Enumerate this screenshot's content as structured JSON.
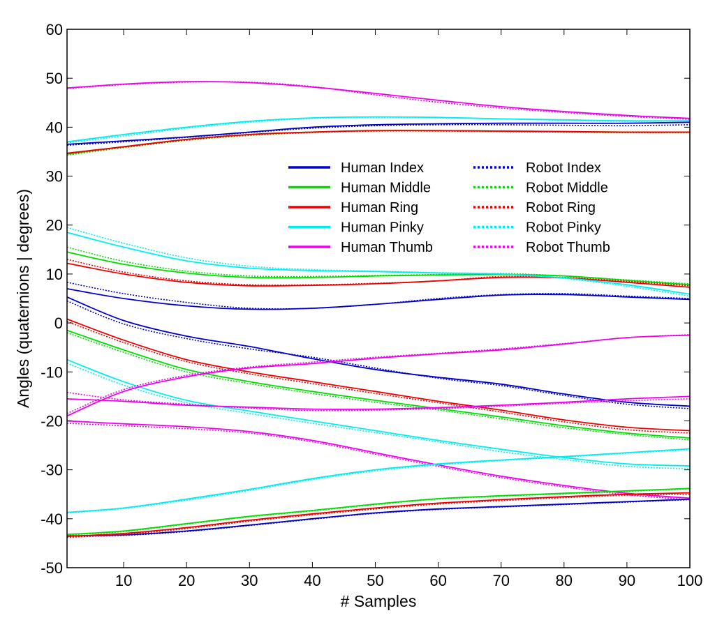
{
  "chart_data": {
    "type": "line",
    "title": "",
    "xlabel": "# Samples",
    "ylabel": "Angles (quaternions | degrees)",
    "xlim": [
      1,
      100
    ],
    "ylim": [
      -50,
      60
    ],
    "xticks": [
      "10",
      "20",
      "30",
      "40",
      "50",
      "60",
      "70",
      "80",
      "90",
      "100"
    ],
    "yticks": [
      "-50",
      "-40",
      "-30",
      "-20",
      "-10",
      "0",
      "10",
      "20",
      "30",
      "40",
      "50",
      "60"
    ],
    "grid": false,
    "legend_position": "upper-center",
    "legend": [
      {
        "name": "Human Index",
        "color": "#0000c8",
        "style": "solid"
      },
      {
        "name": "Human Middle",
        "color": "#00dd00",
        "style": "solid"
      },
      {
        "name": "Human Ring",
        "color": "#ee0000",
        "style": "solid"
      },
      {
        "name": "Human Pinky",
        "color": "#00eeee",
        "style": "solid"
      },
      {
        "name": "Human Thumb",
        "color": "#ee00ee",
        "style": "solid"
      },
      {
        "name": "Robot Index",
        "color": "#0000c8",
        "style": "dotted"
      },
      {
        "name": "Robot Middle",
        "color": "#00dd00",
        "style": "dotted"
      },
      {
        "name": "Robot Ring",
        "color": "#ee0000",
        "style": "dotted"
      },
      {
        "name": "Robot Pinky",
        "color": "#00eeee",
        "style": "dotted"
      },
      {
        "name": "Robot Thumb",
        "color": "#ee00ee",
        "style": "dotted"
      }
    ],
    "x": [
      1,
      10,
      20,
      30,
      40,
      50,
      60,
      70,
      80,
      90,
      100
    ],
    "series": [
      {
        "finger": "index",
        "style": "solid",
        "color": "#0000c8",
        "values": [
          36.5,
          37.2,
          38.0,
          39.0,
          40.0,
          40.5,
          40.7,
          40.8,
          40.8,
          40.8,
          41.0
        ]
      },
      {
        "finger": "index",
        "style": "dotted",
        "color": "#0000c8",
        "values": [
          36.3,
          37.0,
          37.9,
          38.9,
          39.8,
          40.3,
          40.5,
          40.5,
          40.4,
          40.3,
          40.5
        ]
      },
      {
        "finger": "middle",
        "style": "solid",
        "color": "#00dd00",
        "values": [
          34.5,
          36.0,
          37.5,
          38.5,
          39.0,
          39.3,
          39.3,
          39.2,
          39.1,
          39.0,
          39.0
        ]
      },
      {
        "finger": "middle",
        "style": "dotted",
        "color": "#00dd00",
        "values": [
          34.3,
          35.8,
          37.3,
          38.3,
          38.9,
          39.3,
          39.3,
          39.1,
          39.0,
          38.9,
          38.9
        ]
      },
      {
        "finger": "ring",
        "style": "solid",
        "color": "#ee0000",
        "values": [
          34.7,
          36.0,
          37.5,
          38.5,
          39.0,
          39.3,
          39.3,
          39.2,
          39.1,
          39.0,
          39.0
        ]
      },
      {
        "finger": "ring",
        "style": "dotted",
        "color": "#ee0000",
        "values": [
          34.6,
          35.9,
          37.4,
          38.4,
          38.9,
          39.2,
          39.2,
          39.1,
          39.0,
          38.9,
          38.9
        ]
      },
      {
        "finger": "pinky",
        "style": "solid",
        "color": "#00eeee",
        "values": [
          37.0,
          38.5,
          40.0,
          41.2,
          41.9,
          42.1,
          42.0,
          41.7,
          41.5,
          41.3,
          41.3
        ]
      },
      {
        "finger": "pinky",
        "style": "dotted",
        "color": "#00eeee",
        "values": [
          36.8,
          38.2,
          39.8,
          41.0,
          41.8,
          42.0,
          41.9,
          41.7,
          41.4,
          41.2,
          41.3
        ]
      },
      {
        "finger": "thumb",
        "style": "solid",
        "color": "#ee00ee",
        "values": [
          48.0,
          48.8,
          49.3,
          49.1,
          48.2,
          46.9,
          45.5,
          44.2,
          43.2,
          42.4,
          41.8
        ]
      },
      {
        "finger": "thumb",
        "style": "dotted",
        "color": "#ee00ee",
        "values": [
          47.9,
          48.7,
          49.2,
          49.2,
          48.3,
          46.6,
          45.1,
          43.9,
          43.0,
          42.2,
          41.6
        ]
      },
      {
        "finger": "index",
        "style": "solid",
        "color": "#0000c8",
        "values": [
          7.0,
          5.0,
          3.5,
          2.8,
          3.0,
          3.8,
          4.8,
          5.7,
          5.8,
          5.3,
          4.8
        ]
      },
      {
        "finger": "index",
        "style": "dotted",
        "color": "#0000c8",
        "values": [
          8.3,
          6.0,
          4.2,
          3.0,
          3.0,
          3.8,
          5.0,
          5.8,
          6.0,
          5.5,
          5.0
        ]
      },
      {
        "finger": "middle",
        "style": "solid",
        "color": "#00dd00",
        "values": [
          14.5,
          12.0,
          10.2,
          9.3,
          9.3,
          9.6,
          9.8,
          9.9,
          9.6,
          8.7,
          7.8
        ]
      },
      {
        "finger": "middle",
        "style": "dotted",
        "color": "#00dd00",
        "values": [
          15.5,
          12.6,
          10.6,
          9.6,
          9.5,
          9.7,
          9.9,
          10.1,
          9.6,
          8.8,
          8.0
        ]
      },
      {
        "finger": "ring",
        "style": "solid",
        "color": "#ee0000",
        "values": [
          12.2,
          10.0,
          8.3,
          7.6,
          7.7,
          8.0,
          8.6,
          9.3,
          9.2,
          8.3,
          7.3
        ]
      },
      {
        "finger": "ring",
        "style": "dotted",
        "color": "#ee0000",
        "values": [
          13.0,
          10.4,
          8.6,
          7.8,
          7.8,
          8.1,
          8.6,
          9.5,
          9.3,
          8.5,
          7.6
        ]
      },
      {
        "finger": "pinky",
        "style": "solid",
        "color": "#00eeee",
        "values": [
          18.5,
          15.5,
          12.7,
          11.2,
          10.7,
          10.5,
          10.2,
          10.0,
          9.2,
          7.8,
          5.9
        ]
      },
      {
        "finger": "pinky",
        "style": "dotted",
        "color": "#00eeee",
        "values": [
          19.5,
          16.3,
          13.3,
          11.6,
          10.9,
          10.6,
          10.3,
          10.0,
          9.1,
          7.5,
          5.5
        ]
      },
      {
        "finger": "index",
        "style": "solid",
        "color": "#0000c8",
        "values": [
          5.3,
          0.5,
          -2.7,
          -4.8,
          -7.3,
          -9.5,
          -11.1,
          -12.5,
          -14.5,
          -16.2,
          -17.0
        ]
      },
      {
        "finger": "index",
        "style": "dotted",
        "color": "#0000c8",
        "values": [
          4.5,
          -0.2,
          -3.2,
          -5.3,
          -7.0,
          -9.2,
          -11.3,
          -12.8,
          -14.8,
          -16.6,
          -17.5
        ]
      },
      {
        "finger": "middle",
        "style": "solid",
        "color": "#00dd00",
        "values": [
          -1.5,
          -5.5,
          -9.5,
          -12.0,
          -14.0,
          -15.8,
          -17.5,
          -19.2,
          -21.0,
          -22.5,
          -23.5
        ]
      },
      {
        "finger": "middle",
        "style": "dotted",
        "color": "#00dd00",
        "values": [
          -2.0,
          -6.0,
          -10.0,
          -12.4,
          -14.4,
          -16.2,
          -17.8,
          -19.6,
          -21.4,
          -22.8,
          -23.9
        ]
      },
      {
        "finger": "ring",
        "style": "solid",
        "color": "#ee0000",
        "values": [
          0.8,
          -3.5,
          -7.5,
          -10.0,
          -12.0,
          -14.0,
          -16.0,
          -17.8,
          -19.8,
          -21.3,
          -22.0
        ]
      },
      {
        "finger": "ring",
        "style": "dotted",
        "color": "#ee0000",
        "values": [
          0.3,
          -4.0,
          -7.9,
          -10.4,
          -12.4,
          -14.4,
          -16.3,
          -18.2,
          -20.2,
          -21.8,
          -22.5
        ]
      },
      {
        "finger": "pinky",
        "style": "solid",
        "color": "#00eeee",
        "values": [
          -7.5,
          -12.0,
          -15.8,
          -18.0,
          -20.0,
          -22.0,
          -24.0,
          -25.8,
          -27.5,
          -28.8,
          -29.2
        ]
      },
      {
        "finger": "pinky",
        "style": "dotted",
        "color": "#00eeee",
        "values": [
          -8.2,
          -12.7,
          -16.3,
          -18.5,
          -20.5,
          -22.4,
          -24.3,
          -26.3,
          -27.9,
          -29.3,
          -29.8
        ]
      },
      {
        "finger": "thumb",
        "style": "solid",
        "color": "#ee00ee",
        "values": [
          -19.0,
          -14.0,
          -11.0,
          -9.2,
          -8.3,
          -7.2,
          -6.3,
          -5.5,
          -4.3,
          -3.0,
          -2.5
        ]
      },
      {
        "finger": "thumb",
        "style": "dotted",
        "color": "#ee00ee",
        "values": [
          -18.5,
          -13.6,
          -10.7,
          -9.0,
          -8.0,
          -7.0,
          -6.2,
          -5.3,
          -4.2,
          -3.0,
          -2.4
        ]
      },
      {
        "finger": "thumb",
        "style": "solid",
        "color": "#ee00ee",
        "values": [
          -15.5,
          -16.0,
          -16.8,
          -17.2,
          -17.6,
          -17.6,
          -17.3,
          -16.8,
          -16.2,
          -15.5,
          -15.0
        ]
      },
      {
        "finger": "thumb",
        "style": "dotted",
        "color": "#ee00ee",
        "values": [
          -14.2,
          -15.7,
          -16.6,
          -17.4,
          -17.9,
          -17.8,
          -17.5,
          -17.0,
          -16.4,
          -15.9,
          -15.5
        ]
      },
      {
        "finger": "thumb",
        "style": "solid",
        "color": "#ee00ee",
        "values": [
          -20.0,
          -20.6,
          -21.2,
          -22.2,
          -24.0,
          -26.5,
          -29.0,
          -31.3,
          -33.2,
          -34.8,
          -35.8
        ]
      },
      {
        "finger": "thumb",
        "style": "dotted",
        "color": "#ee00ee",
        "values": [
          -20.5,
          -21.0,
          -21.6,
          -22.5,
          -24.3,
          -26.8,
          -29.3,
          -31.6,
          -33.5,
          -35.1,
          -36.1
        ]
      },
      {
        "finger": "pinky",
        "style": "solid",
        "color": "#00eeee",
        "values": [
          -38.7,
          -37.8,
          -36.0,
          -34.0,
          -31.8,
          -30.0,
          -28.8,
          -28.0,
          -27.3,
          -26.5,
          -25.7
        ]
      },
      {
        "finger": "pinky",
        "style": "dotted",
        "color": "#00eeee",
        "values": [
          -38.8,
          -37.9,
          -36.2,
          -34.2,
          -32.0,
          -30.2,
          -29.0,
          -28.1,
          -27.4,
          -26.6,
          -25.9
        ]
      },
      {
        "finger": "index",
        "style": "solid",
        "color": "#0000c8",
        "values": [
          -43.5,
          -43.3,
          -42.5,
          -41.3,
          -40.0,
          -38.8,
          -38.0,
          -37.5,
          -37.0,
          -36.5,
          -36.0
        ]
      },
      {
        "finger": "index",
        "style": "dotted",
        "color": "#0000c8",
        "values": [
          -43.6,
          -43.4,
          -42.6,
          -41.4,
          -40.1,
          -38.9,
          -38.1,
          -37.6,
          -37.1,
          -36.6,
          -36.1
        ]
      },
      {
        "finger": "middle",
        "style": "solid",
        "color": "#00dd00",
        "values": [
          -43.2,
          -42.5,
          -41.0,
          -39.5,
          -38.3,
          -37.0,
          -35.9,
          -35.3,
          -34.8,
          -34.3,
          -33.8
        ]
      },
      {
        "finger": "middle",
        "style": "dotted",
        "color": "#00dd00",
        "values": [
          -43.3,
          -42.6,
          -41.1,
          -39.6,
          -38.4,
          -37.1,
          -36.0,
          -35.4,
          -34.9,
          -34.4,
          -33.9
        ]
      },
      {
        "finger": "ring",
        "style": "solid",
        "color": "#ee0000",
        "values": [
          -43.6,
          -43.0,
          -41.8,
          -40.3,
          -39.0,
          -37.8,
          -36.8,
          -36.1,
          -35.5,
          -35.0,
          -34.7
        ]
      },
      {
        "finger": "ring",
        "style": "dotted",
        "color": "#ee0000",
        "values": [
          -43.8,
          -43.2,
          -42.0,
          -40.5,
          -39.2,
          -38.0,
          -37.0,
          -36.3,
          -35.7,
          -35.2,
          -35.0
        ]
      }
    ]
  }
}
